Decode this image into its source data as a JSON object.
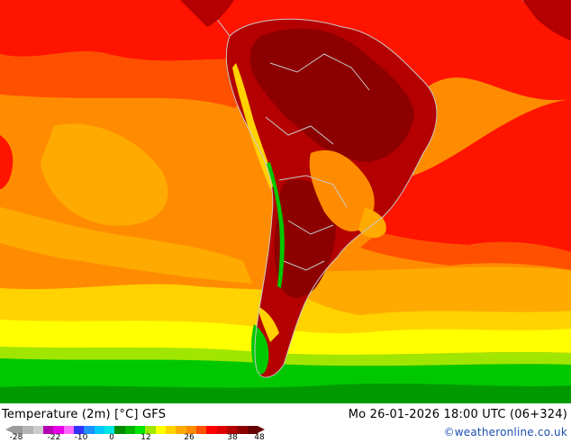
{
  "map": {
    "variable": "Temperature (2m) [°C]",
    "model": "GFS",
    "valid_time": "Mo 26-01-2026 18:00 UTC (06+324)",
    "credit": "©weatheronline.co.uk"
  },
  "legend": {
    "ticks": [
      "-28",
      "-22",
      "-10",
      "0",
      "12",
      "26",
      "38",
      "48"
    ],
    "colors": [
      "#9b9b9b",
      "#b4b4b4",
      "#cdcdcd",
      "#b400b4",
      "#e600e6",
      "#ff64ff",
      "#3232ff",
      "#1e90ff",
      "#00c8ff",
      "#00e6e6",
      "#008c00",
      "#00b400",
      "#00e600",
      "#a0e600",
      "#ffff00",
      "#ffd200",
      "#ffaa00",
      "#ff8c00",
      "#ff5000",
      "#ff0000",
      "#dc0000",
      "#b40000",
      "#8c0000",
      "#640000"
    ]
  },
  "colors": {
    "ocean_warm": "#ff8c00",
    "ocean_hot": "#ff5000",
    "ocean_red": "#ff1400",
    "land_hot": "#b40000",
    "land_very_hot": "#8c0000",
    "cool_yellow": "#ffd200",
    "cold_green": "#00c800",
    "dark_green": "#009a00",
    "coast_line": "#c8c8c8"
  }
}
